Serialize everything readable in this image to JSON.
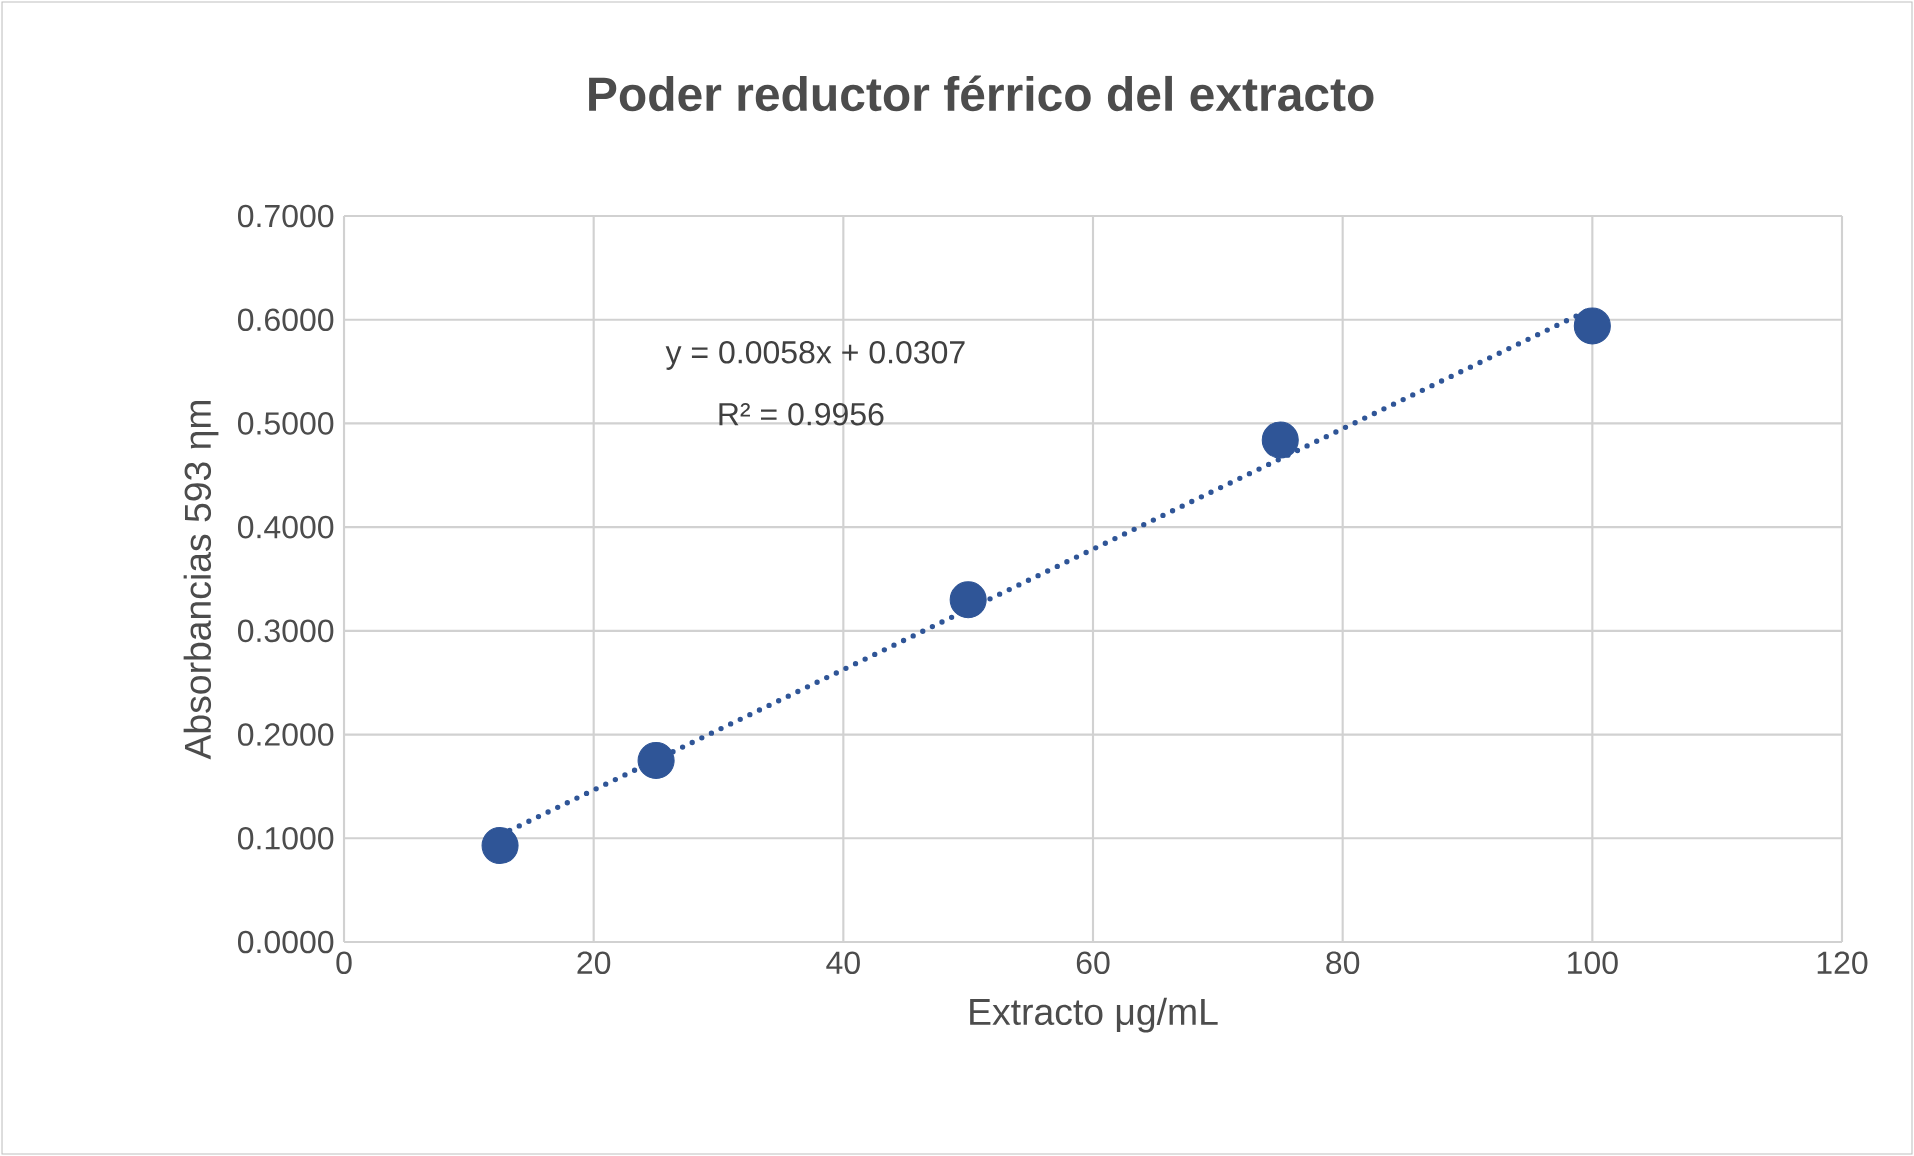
{
  "chart_data": {
    "type": "scatter",
    "title": "Poder reductor férrico del extracto",
    "xlabel": "Extracto μg/mL",
    "ylabel": "Absorbancias 593 ηm",
    "annotations": [
      "y = 0.0058x + 0.0307",
      "R² = 0.9956"
    ],
    "x": [
      12.5,
      25,
      50,
      75,
      100
    ],
    "series": [
      {
        "color": "#2f5597",
        "marker": "circle",
        "values": [
          0.093,
          0.175,
          0.33,
          0.484,
          0.594
        ]
      },
      {
        "type": "line",
        "color": "#2f5597",
        "line_style": "dotted",
        "marker": "none",
        "x": [
          12.5,
          100
        ],
        "values": [
          0.103,
          0.611
        ]
      }
    ],
    "xlim": [
      0,
      120
    ],
    "xticks": [
      0,
      20,
      40,
      60,
      80,
      100,
      120
    ],
    "ylim": [
      0,
      0.7
    ],
    "yticks": [
      {
        "value": 0,
        "label": "0.0000"
      },
      {
        "value": 0.1,
        "label": "0.1000"
      },
      {
        "value": 0.2,
        "label": "0.2000"
      },
      {
        "value": 0.3,
        "label": "0.3000"
      },
      {
        "value": 0.4,
        "label": "0.4000"
      },
      {
        "value": 0.5,
        "label": "0.5000"
      },
      {
        "value": 0.6,
        "label": "0.6000"
      },
      {
        "value": 0.7,
        "label": "0.7000"
      }
    ],
    "grid": true
  }
}
